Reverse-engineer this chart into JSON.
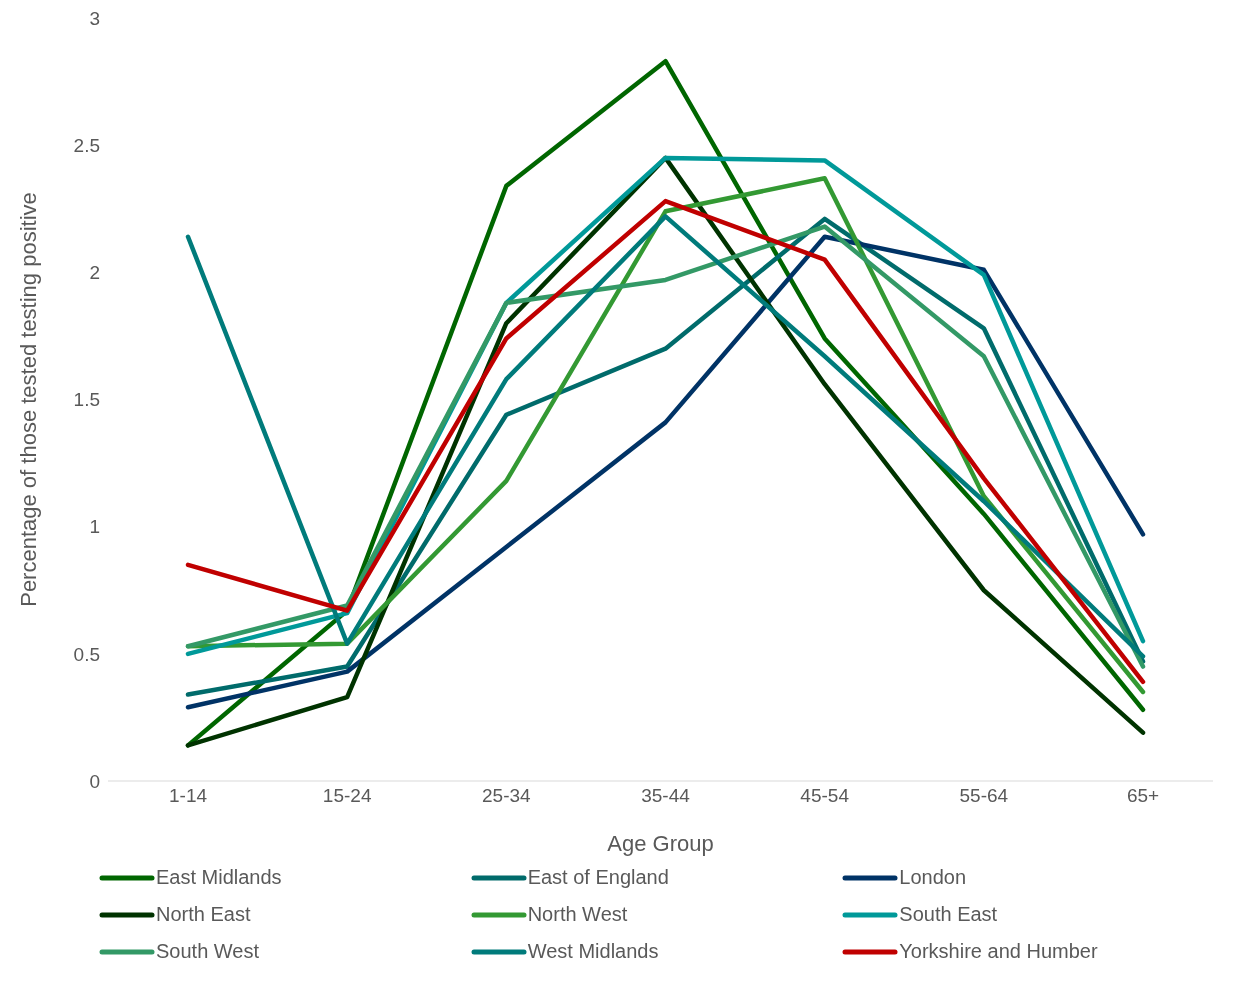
{
  "chart_data": {
    "type": "line",
    "xlabel": "Age Group",
    "ylabel": "Percentage of those tested testing positive",
    "categories": [
      "1-14",
      "15-24",
      "25-34",
      "35-44",
      "45-54",
      "55-64",
      "65+"
    ],
    "ylim": [
      0,
      3
    ],
    "yticks": [
      0,
      0.5,
      1,
      1.5,
      2,
      2.5,
      3
    ],
    "grid": false,
    "legend": "bottom",
    "marker": "none",
    "line_style": "solid",
    "series": [
      {
        "name": "East Midlands",
        "color": "#006600",
        "values": [
          0.14,
          0.67,
          2.34,
          2.83,
          1.74,
          1.05,
          0.28
        ]
      },
      {
        "name": "East of England",
        "color": "#006b6b",
        "values": [
          0.34,
          0.45,
          1.44,
          1.7,
          2.21,
          1.78,
          0.47
        ]
      },
      {
        "name": "London",
        "color": "#003366",
        "values": [
          0.29,
          0.43,
          0.92,
          1.41,
          2.14,
          2.01,
          0.97
        ]
      },
      {
        "name": "North East",
        "color": "#003300",
        "values": [
          0.14,
          0.33,
          1.8,
          2.45,
          1.56,
          0.75,
          0.19
        ]
      },
      {
        "name": "North West",
        "color": "#339933",
        "values": [
          0.53,
          0.54,
          1.18,
          2.24,
          2.37,
          1.12,
          0.35
        ]
      },
      {
        "name": "South East",
        "color": "#009999",
        "values": [
          0.5,
          0.66,
          1.88,
          2.45,
          2.44,
          1.99,
          0.55
        ]
      },
      {
        "name": "South West",
        "color": "#339966",
        "values": [
          0.53,
          0.69,
          1.88,
          1.97,
          2.18,
          1.67,
          0.45
        ]
      },
      {
        "name": "West Midlands",
        "color": "#007b7b",
        "values": [
          2.14,
          0.54,
          1.58,
          2.22,
          1.67,
          1.1,
          0.49
        ]
      },
      {
        "name": "Yorkshire and Humber",
        "color": "#c00000",
        "values": [
          0.85,
          0.67,
          1.74,
          2.28,
          2.05,
          1.19,
          0.39
        ]
      }
    ]
  }
}
